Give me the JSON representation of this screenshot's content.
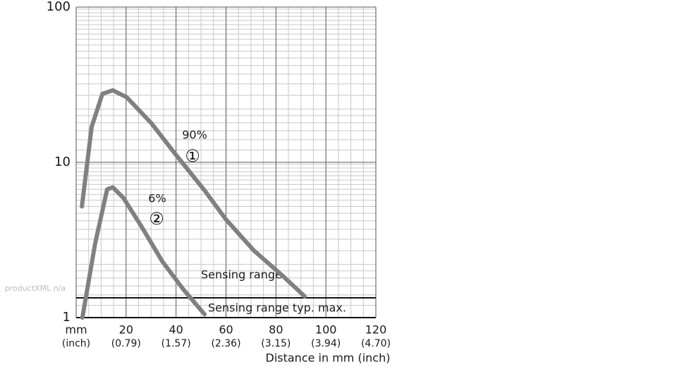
{
  "chart_data": {
    "type": "line",
    "x_label": "Distance in mm (inch)",
    "watermark": "productXML n/a",
    "log_y": true,
    "grid": true,
    "minor_grid": true,
    "xlim": [
      0,
      120
    ],
    "xticks": [
      {
        "value": 0,
        "label": "mm"
      },
      20,
      40,
      60,
      80,
      100,
      120
    ],
    "xtick_sublabels": [
      "(inch)",
      "(0.79)",
      "(1.57)",
      "(2.36)",
      "(3.15)",
      "(3.94)",
      "(4.70)"
    ],
    "ylim": [
      1,
      100
    ],
    "yticks": [
      1,
      10,
      100
    ],
    "series": [
      {
        "name": "90%",
        "marker": "①",
        "color": "#808080",
        "x": [
          2.3,
          6.2,
          10.5,
          14.7,
          20.3,
          30.2,
          40.1,
          51.4,
          59.9,
          71.2,
          82.5,
          91.5
        ],
        "values": [
          5.2,
          16.9,
          27.6,
          29.1,
          26.2,
          17.8,
          11.1,
          6.6,
          4.3,
          2.7,
          1.87,
          1.37
        ]
      },
      {
        "name": "6%",
        "marker": "②",
        "color": "#808080",
        "x": [
          2.5,
          7.6,
          12.4,
          14.7,
          18.9,
          26,
          34.5,
          42.9,
          51.4
        ],
        "values": [
          1.0,
          3.0,
          6.7,
          6.9,
          5.9,
          3.9,
          2.3,
          1.52,
          1.05
        ]
      }
    ],
    "reference_line": {
      "value": 1.34,
      "label": "Sensing range typ. max."
    },
    "annotation": "Sensing range"
  }
}
